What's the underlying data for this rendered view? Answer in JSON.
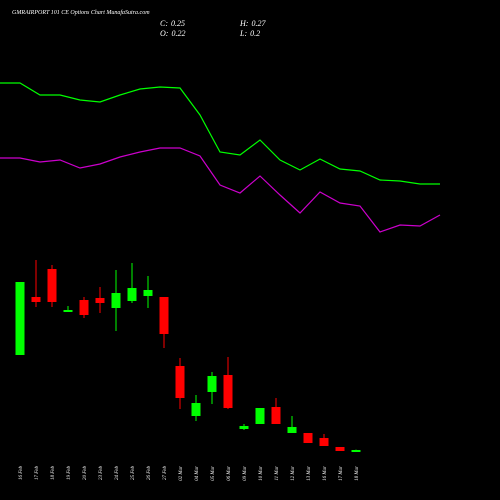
{
  "header": {
    "title": "GMRAIRPORT 101 CE Options Chart MunafaSutra.com",
    "stats": [
      {
        "label": "C:",
        "value": 0.25
      },
      {
        "label": "H:",
        "value": 0.27
      },
      {
        "label": "O:",
        "value": 0.22
      },
      {
        "label": "L:",
        "value": 0.2
      }
    ]
  },
  "chart_data": [
    {
      "type": "candlestick",
      "up_color": "#00ff00",
      "down_color": "#ff0000",
      "categories": [
        "16 Feb",
        "17 Feb",
        "18 Feb",
        "19 Feb",
        "20 Feb",
        "23 Feb",
        "24 Feb",
        "25 Feb",
        "26 Feb",
        "27 Feb",
        "02 Mar",
        "04 Mar",
        "05 Mar",
        "06 Mar",
        "09 Mar",
        "10 Mar",
        "11 Mar",
        "12 Mar",
        "13 Mar",
        "16 Mar",
        "17 Mar",
        "18 Mar"
      ],
      "open": [
        5.0,
        7.9,
        9.3,
        7.15,
        7.75,
        7.85,
        7.35,
        7.7,
        7.95,
        7.9,
        4.45,
        1.95,
        3.15,
        4.0,
        1.3,
        1.55,
        2.4,
        1.1,
        1.1,
        0.85,
        0.4,
        0.22
      ],
      "high": [
        8.65,
        9.75,
        9.5,
        7.45,
        7.9,
        8.4,
        9.25,
        9.6,
        8.95,
        7.9,
        4.85,
        3.0,
        4.15,
        4.9,
        1.55,
        2.35,
        2.85,
        1.95,
        1.1,
        1.05,
        0.4,
        0.27
      ],
      "low": [
        5.0,
        7.4,
        7.4,
        7.15,
        6.85,
        7.1,
        6.2,
        7.6,
        7.35,
        5.35,
        2.3,
        1.7,
        2.55,
        2.3,
        1.25,
        1.55,
        1.55,
        1.1,
        0.6,
        0.45,
        0.2,
        0.2
      ],
      "close": [
        8.65,
        7.65,
        7.65,
        7.25,
        7.0,
        7.6,
        8.1,
        8.35,
        8.25,
        6.05,
        2.85,
        2.6,
        3.95,
        2.35,
        1.45,
        2.35,
        1.55,
        1.4,
        0.6,
        0.45,
        0.2,
        0.25
      ],
      "ylim": [
        -0.25,
        9.75
      ]
    },
    {
      "type": "line",
      "ylim": [
        0,
        23
      ],
      "series": [
        {
          "color": "#00ff00",
          "values": [
            18.85,
            18.85,
            18.25,
            18.25,
            18.0,
            17.9,
            18.25,
            18.55,
            18.65,
            18.6,
            17.25,
            15.4,
            15.25,
            16.0,
            15.0,
            14.5,
            15.05,
            14.55,
            14.45,
            14.0,
            13.95,
            13.8,
            13.8
          ]
        },
        {
          "color": "#cc00cc",
          "values": [
            15.1,
            15.1,
            14.9,
            15.0,
            14.6,
            14.8,
            15.15,
            15.4,
            15.6,
            15.6,
            15.2,
            13.75,
            13.35,
            14.2,
            13.25,
            12.35,
            13.4,
            12.85,
            12.7,
            11.4,
            11.75,
            11.7,
            12.25
          ]
        }
      ]
    }
  ]
}
